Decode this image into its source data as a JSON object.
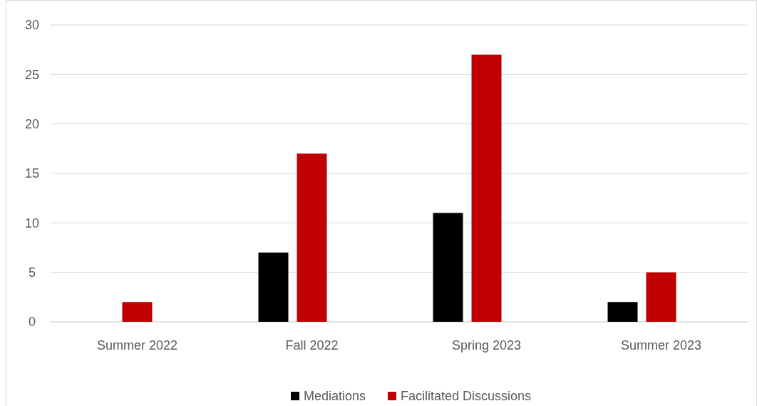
{
  "chart_data": {
    "type": "bar",
    "categories": [
      "Summer 2022",
      "Fall 2022",
      "Spring 2023",
      "Summer 2023"
    ],
    "series": [
      {
        "name": "Mediations",
        "color": "#000000",
        "values": [
          0,
          7,
          11,
          2
        ]
      },
      {
        "name": "Facilitated Discussions",
        "color": "#c00000",
        "values": [
          2,
          17,
          27,
          5
        ]
      }
    ],
    "ylim": [
      0,
      30
    ],
    "yticks": [
      0,
      5,
      10,
      15,
      20,
      25,
      30
    ],
    "grid": "y",
    "legend": "bottom"
  }
}
